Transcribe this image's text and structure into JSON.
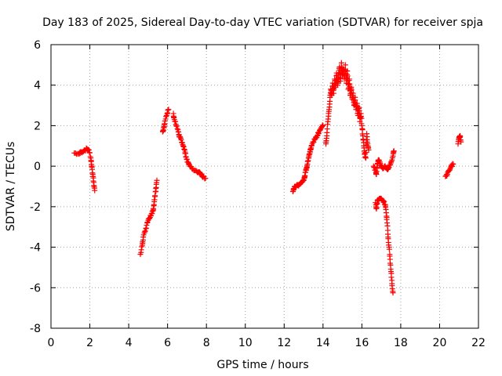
{
  "chart_data": {
    "type": "scatter",
    "title": "Day 183 of 2025, Sidereal Day-to-day VTEC variation (SDTVAR) for receiver spja",
    "xlabel": "GPS time / hours",
    "ylabel": "SDTVAR / TECUs",
    "xlim": [
      0,
      22
    ],
    "ylim": [
      -8,
      6
    ],
    "xticks": [
      0,
      2,
      4,
      6,
      8,
      10,
      12,
      14,
      16,
      18,
      20,
      22
    ],
    "yticks": [
      -8,
      -6,
      -4,
      -2,
      0,
      2,
      4,
      6
    ],
    "grid": true,
    "marker": "+",
    "marker_color": "#ff0000",
    "series": [
      {
        "name": "spja",
        "segments": [
          [
            [
              1.2,
              0.65
            ],
            [
              1.45,
              0.6
            ],
            [
              1.55,
              0.7
            ],
            [
              1.7,
              0.78
            ],
            [
              1.85,
              0.85
            ],
            [
              1.95,
              0.8
            ],
            [
              2.05,
              0.4
            ],
            [
              2.1,
              0.0
            ],
            [
              2.15,
              -0.4
            ],
            [
              2.2,
              -0.8
            ],
            [
              2.25,
              -1.2
            ]
          ],
          [
            [
              4.6,
              -4.35
            ],
            [
              4.7,
              -3.9
            ],
            [
              4.75,
              -3.5
            ],
            [
              4.85,
              -3.2
            ],
            [
              4.95,
              -2.8
            ],
            [
              5.05,
              -2.6
            ],
            [
              5.15,
              -2.45
            ],
            [
              5.25,
              -2.2
            ],
            [
              5.3,
              -1.9
            ],
            [
              5.35,
              -1.5
            ],
            [
              5.4,
              -1.1
            ],
            [
              5.45,
              -0.7
            ]
          ],
          [
            [
              5.75,
              1.7
            ],
            [
              5.8,
              1.9
            ],
            [
              5.85,
              2.1
            ],
            [
              5.95,
              2.5
            ],
            [
              6.05,
              2.8
            ]
          ],
          [
            [
              6.3,
              2.6
            ],
            [
              6.35,
              2.3
            ],
            [
              6.45,
              2.0
            ],
            [
              6.55,
              1.7
            ],
            [
              6.6,
              1.45
            ],
            [
              6.7,
              1.3
            ],
            [
              6.8,
              1.0
            ],
            [
              6.9,
              0.7
            ],
            [
              6.95,
              0.45
            ],
            [
              7.05,
              0.2
            ],
            [
              7.15,
              0.0
            ],
            [
              7.3,
              -0.15
            ],
            [
              7.5,
              -0.25
            ],
            [
              7.65,
              -0.3
            ],
            [
              7.75,
              -0.45
            ],
            [
              7.85,
              -0.5
            ],
            [
              7.95,
              -0.6
            ]
          ],
          [
            [
              12.45,
              -1.25
            ],
            [
              12.5,
              -1.1
            ],
            [
              12.6,
              -1.0
            ],
            [
              12.7,
              -0.95
            ],
            [
              12.8,
              -0.9
            ],
            [
              12.9,
              -0.8
            ],
            [
              13.0,
              -0.7
            ],
            [
              13.05,
              -0.55
            ],
            [
              13.1,
              -0.3
            ],
            [
              13.15,
              -0.1
            ],
            [
              13.2,
              0.1
            ],
            [
              13.25,
              0.4
            ],
            [
              13.3,
              0.6
            ],
            [
              13.35,
              0.8
            ],
            [
              13.4,
              1.0
            ],
            [
              13.5,
              1.2
            ],
            [
              13.6,
              1.35
            ],
            [
              13.7,
              1.5
            ],
            [
              13.8,
              1.7
            ],
            [
              13.9,
              1.9
            ],
            [
              14.0,
              2.0
            ]
          ],
          [
            [
              14.15,
              1.1
            ],
            [
              14.2,
              1.5
            ],
            [
              14.25,
              2.2
            ],
            [
              14.3,
              2.7
            ],
            [
              14.35,
              3.2
            ],
            [
              14.4,
              3.8
            ],
            [
              14.45,
              3.5
            ],
            [
              14.5,
              4.1
            ],
            [
              14.55,
              3.6
            ],
            [
              14.6,
              4.3
            ],
            [
              14.65,
              3.9
            ],
            [
              14.7,
              4.6
            ],
            [
              14.75,
              4.0
            ],
            [
              14.8,
              4.4
            ],
            [
              14.85,
              4.9
            ],
            [
              14.9,
              4.2
            ],
            [
              14.95,
              5.1
            ],
            [
              15.0,
              4.5
            ],
            [
              15.05,
              4.8
            ],
            [
              15.1,
              4.3
            ],
            [
              15.15,
              5.0
            ],
            [
              15.2,
              4.1
            ],
            [
              15.25,
              4.7
            ],
            [
              15.3,
              3.8
            ],
            [
              15.35,
              4.3
            ],
            [
              15.4,
              3.5
            ],
            [
              15.45,
              3.9
            ],
            [
              15.5,
              3.3
            ],
            [
              15.55,
              3.6
            ],
            [
              15.6,
              3.0
            ],
            [
              15.65,
              3.4
            ],
            [
              15.7,
              2.8
            ],
            [
              15.75,
              3.1
            ],
            [
              15.8,
              2.5
            ],
            [
              15.85,
              2.9
            ],
            [
              15.9,
              2.2
            ],
            [
              15.95,
              2.6
            ],
            [
              16.0,
              2.0
            ],
            [
              16.05,
              1.5
            ],
            [
              16.1,
              1.0
            ],
            [
              16.15,
              0.6
            ],
            [
              16.2,
              0.4
            ],
            [
              16.25,
              1.6
            ],
            [
              16.3,
              1.1
            ],
            [
              16.35,
              0.8
            ]
          ],
          [
            [
              16.6,
              0.0
            ],
            [
              16.7,
              -0.2
            ],
            [
              16.75,
              -0.4
            ],
            [
              16.8,
              0.1
            ],
            [
              16.85,
              0.3
            ],
            [
              16.9,
              0.2
            ],
            [
              17.0,
              0.0
            ],
            [
              17.1,
              -0.1
            ],
            [
              17.2,
              0.0
            ],
            [
              17.3,
              -0.15
            ],
            [
              17.4,
              -0.05
            ],
            [
              17.5,
              0.2
            ],
            [
              17.6,
              0.5
            ],
            [
              17.65,
              0.75
            ]
          ],
          [
            [
              16.7,
              -1.8
            ],
            [
              16.75,
              -2.1
            ],
            [
              16.8,
              -1.7
            ],
            [
              16.9,
              -1.6
            ],
            [
              17.0,
              -1.6
            ],
            [
              17.1,
              -1.7
            ],
            [
              17.2,
              -1.9
            ],
            [
              17.25,
              -2.3
            ],
            [
              17.3,
              -2.8
            ],
            [
              17.35,
              -3.5
            ],
            [
              17.4,
              -4.0
            ],
            [
              17.45,
              -4.6
            ],
            [
              17.5,
              -5.2
            ],
            [
              17.55,
              -5.8
            ],
            [
              17.6,
              -6.25
            ]
          ],
          [
            [
              20.3,
              -0.5
            ],
            [
              20.4,
              -0.4
            ],
            [
              20.5,
              -0.2
            ],
            [
              20.6,
              0.0
            ],
            [
              20.7,
              0.1
            ]
          ],
          [
            [
              20.95,
              1.1
            ],
            [
              21.0,
              1.4
            ],
            [
              21.05,
              1.5
            ],
            [
              21.1,
              1.2
            ]
          ]
        ]
      }
    ]
  }
}
